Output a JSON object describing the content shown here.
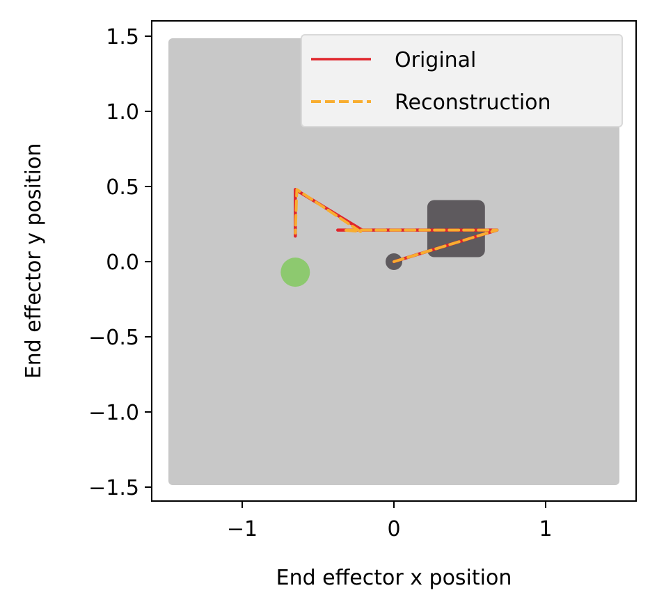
{
  "chart_data": {
    "type": "line",
    "xlabel": "End effector x position",
    "ylabel": "End effector y position",
    "xlim": [
      -1.6,
      1.6
    ],
    "ylim": [
      -1.6,
      1.6
    ],
    "x_ticks": [
      -1,
      0,
      1
    ],
    "x_tick_labels": [
      "−1",
      "0",
      "1"
    ],
    "y_ticks": [
      1.5,
      1.0,
      0.5,
      0.0,
      -0.5,
      -1.0,
      -1.5
    ],
    "y_tick_labels": [
      "1.5",
      "1.0",
      "0.5",
      "0.0",
      "−0.5",
      "−1.0",
      "−1.5"
    ],
    "grid": false,
    "legend_position": "top-right",
    "background_region": {
      "x": [
        -1.5,
        1.5
      ],
      "y": [
        -1.5,
        1.5
      ],
      "color": "#c8c8c8"
    },
    "obstacle": {
      "x": [
        0.22,
        0.6
      ],
      "y": [
        0.03,
        0.41
      ],
      "color": "#5e5a5e"
    },
    "start_marker": {
      "x": 0.0,
      "y": 0.0,
      "color": "#5e5a5e"
    },
    "goal_marker": {
      "x": -0.65,
      "y": -0.07,
      "color": "#8dc96f"
    },
    "series": [
      {
        "name": "Original",
        "color": "#e0262c",
        "style": "solid",
        "x": [
          0.0,
          0.68,
          -0.37,
          -0.21,
          -0.65,
          -0.65
        ],
        "y": [
          0.0,
          0.21,
          0.21,
          0.21,
          0.48,
          0.17
        ]
      },
      {
        "name": "Reconstruction",
        "color": "#f8ad30",
        "style": "dashed",
        "x": [
          0.0,
          0.68,
          -0.33,
          -0.22,
          -0.64,
          -0.65
        ],
        "y": [
          0.0,
          0.21,
          0.21,
          0.2,
          0.48,
          0.19
        ]
      }
    ]
  }
}
